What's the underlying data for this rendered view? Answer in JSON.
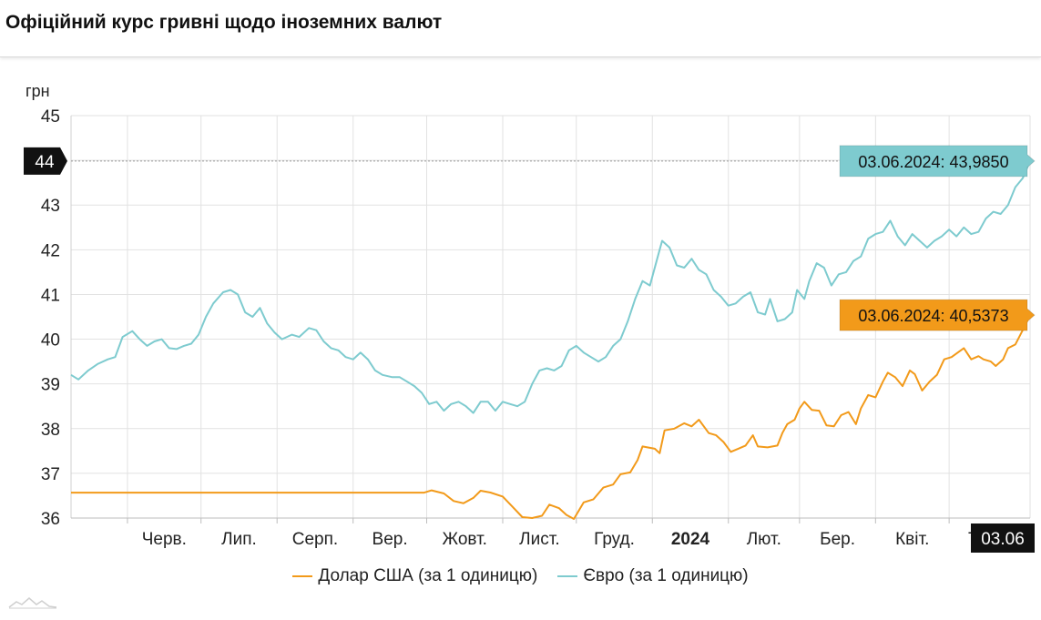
{
  "header": {
    "title": "Офіційний курс гривні щодо іноземних валют"
  },
  "chart_data": {
    "type": "line",
    "ylabel": "грн",
    "ylim": [
      36,
      45
    ],
    "yticks": [
      36,
      37,
      38,
      39,
      40,
      41,
      42,
      43,
      44,
      45
    ],
    "xlim": [
      "2023-05-09",
      "2024-06-03"
    ],
    "x_ticks": [
      {
        "label": "Черв.",
        "date": "2023-06-01",
        "bold": false
      },
      {
        "label": "Лип.",
        "date": "2023-07-01",
        "bold": false
      },
      {
        "label": "Серп.",
        "date": "2023-08-01",
        "bold": false
      },
      {
        "label": "Вер.",
        "date": "2023-09-01",
        "bold": false
      },
      {
        "label": "Жовт.",
        "date": "2023-10-01",
        "bold": false
      },
      {
        "label": "Лист.",
        "date": "2023-11-01",
        "bold": false
      },
      {
        "label": "Груд.",
        "date": "2023-12-01",
        "bold": false
      },
      {
        "label": "2024",
        "date": "2024-01-01",
        "bold": true
      },
      {
        "label": "Лют.",
        "date": "2024-02-01",
        "bold": false
      },
      {
        "label": "Бер.",
        "date": "2024-03-01",
        "bold": false
      },
      {
        "label": "Квіт.",
        "date": "2024-04-01",
        "bold": false
      },
      {
        "label": "Трав.",
        "date": "2024-05-01",
        "bold": false
      }
    ],
    "series": [
      {
        "name": "Долар США (за 1 одиницю)",
        "color": "#f29a1a",
        "points": [
          [
            "2023-05-09",
            36.5686
          ],
          [
            "2023-07-01",
            36.5686
          ],
          [
            "2023-09-01",
            36.5686
          ],
          [
            "2023-09-30",
            36.5686
          ],
          [
            "2023-10-03",
            36.62
          ],
          [
            "2023-10-08",
            36.55
          ],
          [
            "2023-10-12",
            36.38
          ],
          [
            "2023-10-16",
            36.33
          ],
          [
            "2023-10-20",
            36.45
          ],
          [
            "2023-10-23",
            36.61
          ],
          [
            "2023-10-27",
            36.57
          ],
          [
            "2023-11-01",
            36.48
          ],
          [
            "2023-11-05",
            36.25
          ],
          [
            "2023-11-09",
            36.02
          ],
          [
            "2023-11-13",
            36.0
          ],
          [
            "2023-11-17",
            36.05
          ],
          [
            "2023-11-20",
            36.3
          ],
          [
            "2023-11-24",
            36.22
          ],
          [
            "2023-11-27",
            36.07
          ],
          [
            "2023-11-30",
            35.98
          ],
          [
            "2023-12-04",
            36.35
          ],
          [
            "2023-12-08",
            36.42
          ],
          [
            "2023-12-12",
            36.68
          ],
          [
            "2023-12-16",
            36.75
          ],
          [
            "2023-12-19",
            36.98
          ],
          [
            "2023-12-23",
            37.02
          ],
          [
            "2023-12-26",
            37.3
          ],
          [
            "2023-12-28",
            37.6
          ],
          [
            "2024-01-02",
            37.55
          ],
          [
            "2024-01-04",
            37.45
          ],
          [
            "2024-01-06",
            37.96
          ],
          [
            "2024-01-10",
            38.0
          ],
          [
            "2024-01-14",
            38.12
          ],
          [
            "2024-01-17",
            38.05
          ],
          [
            "2024-01-20",
            38.2
          ],
          [
            "2024-01-24",
            37.9
          ],
          [
            "2024-01-27",
            37.85
          ],
          [
            "2024-01-30",
            37.7
          ],
          [
            "2024-02-02",
            37.48
          ],
          [
            "2024-02-05",
            37.55
          ],
          [
            "2024-02-08",
            37.62
          ],
          [
            "2024-02-11",
            37.85
          ],
          [
            "2024-02-13",
            37.6
          ],
          [
            "2024-02-17",
            37.58
          ],
          [
            "2024-02-21",
            37.62
          ],
          [
            "2024-02-23",
            37.9
          ],
          [
            "2024-02-25",
            38.1
          ],
          [
            "2024-02-28",
            38.2
          ],
          [
            "2024-03-01",
            38.45
          ],
          [
            "2024-03-03",
            38.6
          ],
          [
            "2024-03-06",
            38.42
          ],
          [
            "2024-03-09",
            38.4
          ],
          [
            "2024-03-12",
            38.07
          ],
          [
            "2024-03-15",
            38.05
          ],
          [
            "2024-03-18",
            38.3
          ],
          [
            "2024-03-21",
            38.37
          ],
          [
            "2024-03-24",
            38.1
          ],
          [
            "2024-03-26",
            38.45
          ],
          [
            "2024-03-29",
            38.75
          ],
          [
            "2024-04-01",
            38.7
          ],
          [
            "2024-04-04",
            39.05
          ],
          [
            "2024-04-06",
            39.25
          ],
          [
            "2024-04-09",
            39.15
          ],
          [
            "2024-04-12",
            38.95
          ],
          [
            "2024-04-15",
            39.3
          ],
          [
            "2024-04-17",
            39.22
          ],
          [
            "2024-04-20",
            38.85
          ],
          [
            "2024-04-23",
            39.05
          ],
          [
            "2024-04-26",
            39.2
          ],
          [
            "2024-04-29",
            39.55
          ],
          [
            "2024-05-02",
            39.6
          ],
          [
            "2024-05-05",
            39.72
          ],
          [
            "2024-05-07",
            39.8
          ],
          [
            "2024-05-10",
            39.55
          ],
          [
            "2024-05-13",
            39.62
          ],
          [
            "2024-05-15",
            39.55
          ],
          [
            "2024-05-18",
            39.5
          ],
          [
            "2024-05-20",
            39.4
          ],
          [
            "2024-05-23",
            39.55
          ],
          [
            "2024-05-25",
            39.8
          ],
          [
            "2024-05-28",
            39.88
          ],
          [
            "2024-05-31",
            40.2
          ],
          [
            "2024-06-03",
            40.5373
          ]
        ]
      },
      {
        "name": "Євро (за 1 одиницю)",
        "color": "#7ecbcf",
        "points": [
          [
            "2023-05-09",
            39.2
          ],
          [
            "2023-05-12",
            39.1
          ],
          [
            "2023-05-16",
            39.3
          ],
          [
            "2023-05-20",
            39.45
          ],
          [
            "2023-05-24",
            39.55
          ],
          [
            "2023-05-27",
            39.6
          ],
          [
            "2023-05-30",
            40.05
          ],
          [
            "2023-06-03",
            40.18
          ],
          [
            "2023-06-06",
            40.0
          ],
          [
            "2023-06-09",
            39.85
          ],
          [
            "2023-06-12",
            39.95
          ],
          [
            "2023-06-15",
            40.0
          ],
          [
            "2023-06-18",
            39.8
          ],
          [
            "2023-06-21",
            39.78
          ],
          [
            "2023-06-24",
            39.85
          ],
          [
            "2023-06-27",
            39.9
          ],
          [
            "2023-06-30",
            40.1
          ],
          [
            "2023-07-03",
            40.5
          ],
          [
            "2023-07-06",
            40.8
          ],
          [
            "2023-07-10",
            41.05
          ],
          [
            "2023-07-13",
            41.1
          ],
          [
            "2023-07-16",
            41.0
          ],
          [
            "2023-07-19",
            40.6
          ],
          [
            "2023-07-22",
            40.5
          ],
          [
            "2023-07-25",
            40.7
          ],
          [
            "2023-07-28",
            40.35
          ],
          [
            "2023-07-31",
            40.15
          ],
          [
            "2023-08-03",
            40.0
          ],
          [
            "2023-08-07",
            40.1
          ],
          [
            "2023-08-10",
            40.05
          ],
          [
            "2023-08-14",
            40.25
          ],
          [
            "2023-08-17",
            40.2
          ],
          [
            "2023-08-20",
            39.95
          ],
          [
            "2023-08-23",
            39.8
          ],
          [
            "2023-08-26",
            39.75
          ],
          [
            "2023-08-29",
            39.6
          ],
          [
            "2023-09-01",
            39.55
          ],
          [
            "2023-09-04",
            39.7
          ],
          [
            "2023-09-07",
            39.55
          ],
          [
            "2023-09-10",
            39.3
          ],
          [
            "2023-09-13",
            39.2
          ],
          [
            "2023-09-17",
            39.15
          ],
          [
            "2023-09-20",
            39.15
          ],
          [
            "2023-09-23",
            39.05
          ],
          [
            "2023-09-26",
            38.95
          ],
          [
            "2023-09-29",
            38.8
          ],
          [
            "2023-10-02",
            38.55
          ],
          [
            "2023-10-05",
            38.6
          ],
          [
            "2023-10-08",
            38.4
          ],
          [
            "2023-10-11",
            38.55
          ],
          [
            "2023-10-14",
            38.6
          ],
          [
            "2023-10-17",
            38.5
          ],
          [
            "2023-10-20",
            38.35
          ],
          [
            "2023-10-23",
            38.6
          ],
          [
            "2023-10-26",
            38.6
          ],
          [
            "2023-10-29",
            38.4
          ],
          [
            "2023-11-01",
            38.6
          ],
          [
            "2023-11-04",
            38.55
          ],
          [
            "2023-11-07",
            38.5
          ],
          [
            "2023-11-10",
            38.6
          ],
          [
            "2023-11-13",
            39.0
          ],
          [
            "2023-11-16",
            39.3
          ],
          [
            "2023-11-19",
            39.35
          ],
          [
            "2023-11-22",
            39.3
          ],
          [
            "2023-11-25",
            39.4
          ],
          [
            "2023-11-28",
            39.75
          ],
          [
            "2023-12-01",
            39.85
          ],
          [
            "2023-12-04",
            39.7
          ],
          [
            "2023-12-07",
            39.6
          ],
          [
            "2023-12-10",
            39.5
          ],
          [
            "2023-12-13",
            39.6
          ],
          [
            "2023-12-16",
            39.85
          ],
          [
            "2023-12-19",
            40.0
          ],
          [
            "2023-12-22",
            40.4
          ],
          [
            "2023-12-25",
            40.9
          ],
          [
            "2023-12-28",
            41.3
          ],
          [
            "2023-12-31",
            41.2
          ],
          [
            "2024-01-03",
            41.8
          ],
          [
            "2024-01-05",
            42.2
          ],
          [
            "2024-01-08",
            42.05
          ],
          [
            "2024-01-11",
            41.65
          ],
          [
            "2024-01-14",
            41.6
          ],
          [
            "2024-01-17",
            41.8
          ],
          [
            "2024-01-20",
            41.55
          ],
          [
            "2024-01-23",
            41.45
          ],
          [
            "2024-01-26",
            41.1
          ],
          [
            "2024-01-29",
            40.95
          ],
          [
            "2024-02-01",
            40.75
          ],
          [
            "2024-02-04",
            40.8
          ],
          [
            "2024-02-07",
            40.95
          ],
          [
            "2024-02-10",
            41.05
          ],
          [
            "2024-02-13",
            40.6
          ],
          [
            "2024-02-16",
            40.55
          ],
          [
            "2024-02-18",
            40.9
          ],
          [
            "2024-02-21",
            40.4
          ],
          [
            "2024-02-24",
            40.45
          ],
          [
            "2024-02-27",
            40.6
          ],
          [
            "2024-02-29",
            41.1
          ],
          [
            "2024-03-03",
            40.9
          ],
          [
            "2024-03-05",
            41.3
          ],
          [
            "2024-03-08",
            41.7
          ],
          [
            "2024-03-11",
            41.6
          ],
          [
            "2024-03-14",
            41.2
          ],
          [
            "2024-03-17",
            41.45
          ],
          [
            "2024-03-20",
            41.5
          ],
          [
            "2024-03-23",
            41.75
          ],
          [
            "2024-03-26",
            41.85
          ],
          [
            "2024-03-29",
            42.25
          ],
          [
            "2024-04-01",
            42.35
          ],
          [
            "2024-04-04",
            42.4
          ],
          [
            "2024-04-07",
            42.65
          ],
          [
            "2024-04-10",
            42.3
          ],
          [
            "2024-04-13",
            42.1
          ],
          [
            "2024-04-16",
            42.35
          ],
          [
            "2024-04-19",
            42.2
          ],
          [
            "2024-04-22",
            42.05
          ],
          [
            "2024-04-25",
            42.2
          ],
          [
            "2024-04-28",
            42.3
          ],
          [
            "2024-05-01",
            42.45
          ],
          [
            "2024-05-04",
            42.3
          ],
          [
            "2024-05-07",
            42.5
          ],
          [
            "2024-05-10",
            42.35
          ],
          [
            "2024-05-13",
            42.4
          ],
          [
            "2024-05-16",
            42.7
          ],
          [
            "2024-05-19",
            42.85
          ],
          [
            "2024-05-22",
            42.8
          ],
          [
            "2024-05-25",
            43.0
          ],
          [
            "2024-05-28",
            43.4
          ],
          [
            "2024-05-31",
            43.6
          ],
          [
            "2024-06-03",
            43.985
          ]
        ]
      }
    ],
    "crosshair": {
      "y_label": "44",
      "x_label": "03.06"
    },
    "annotations": [
      {
        "series": 1,
        "text": "03.06.2024: 43,9850",
        "bg": "#7ecbcf"
      },
      {
        "series": 0,
        "text": "03.06.2024: 40,5373",
        "bg": "#f29a1a"
      }
    ],
    "legend_position": "bottom-center",
    "grid": true
  }
}
